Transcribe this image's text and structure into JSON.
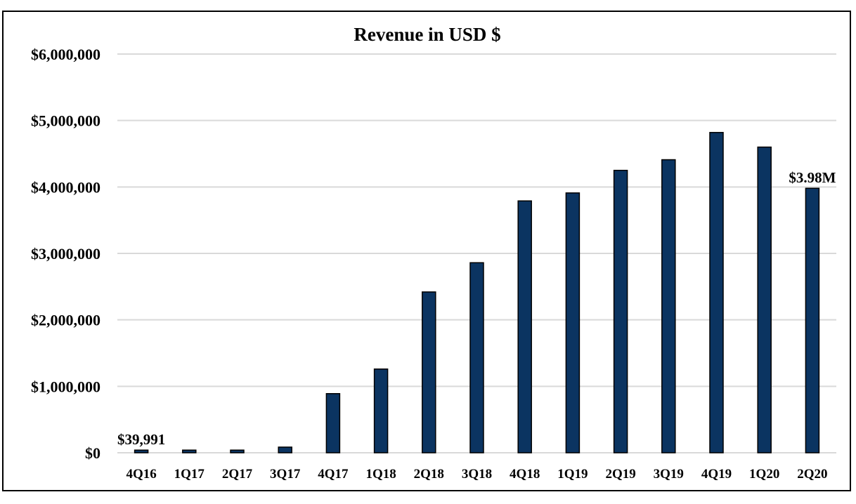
{
  "chart_data": {
    "type": "bar",
    "title": "Revenue in USD $",
    "xlabel": "",
    "ylabel": "",
    "ylim": [
      0,
      6000000
    ],
    "yticks": [
      0,
      1000000,
      2000000,
      3000000,
      4000000,
      5000000,
      6000000
    ],
    "ytick_labels": [
      "$0",
      "$1,000,000",
      "$2,000,000",
      "$3,000,000",
      "$4,000,000",
      "$5,000,000",
      "$6,000,000"
    ],
    "grid": true,
    "legend": "none",
    "categories": [
      "4Q16",
      "1Q17",
      "2Q17",
      "3Q17",
      "4Q17",
      "1Q18",
      "2Q18",
      "3Q18",
      "4Q18",
      "1Q19",
      "2Q19",
      "3Q19",
      "4Q19",
      "1Q20",
      "2Q20"
    ],
    "values": [
      39991,
      40000,
      40000,
      85000,
      890000,
      1260000,
      2420000,
      2860000,
      3790000,
      3910000,
      4250000,
      4410000,
      4820000,
      4600000,
      3980000
    ],
    "data_labels": [
      {
        "index": 0,
        "text": "$39,991"
      },
      {
        "index": 14,
        "text": "$3.98M"
      }
    ],
    "bar_color": "#0b3461"
  }
}
